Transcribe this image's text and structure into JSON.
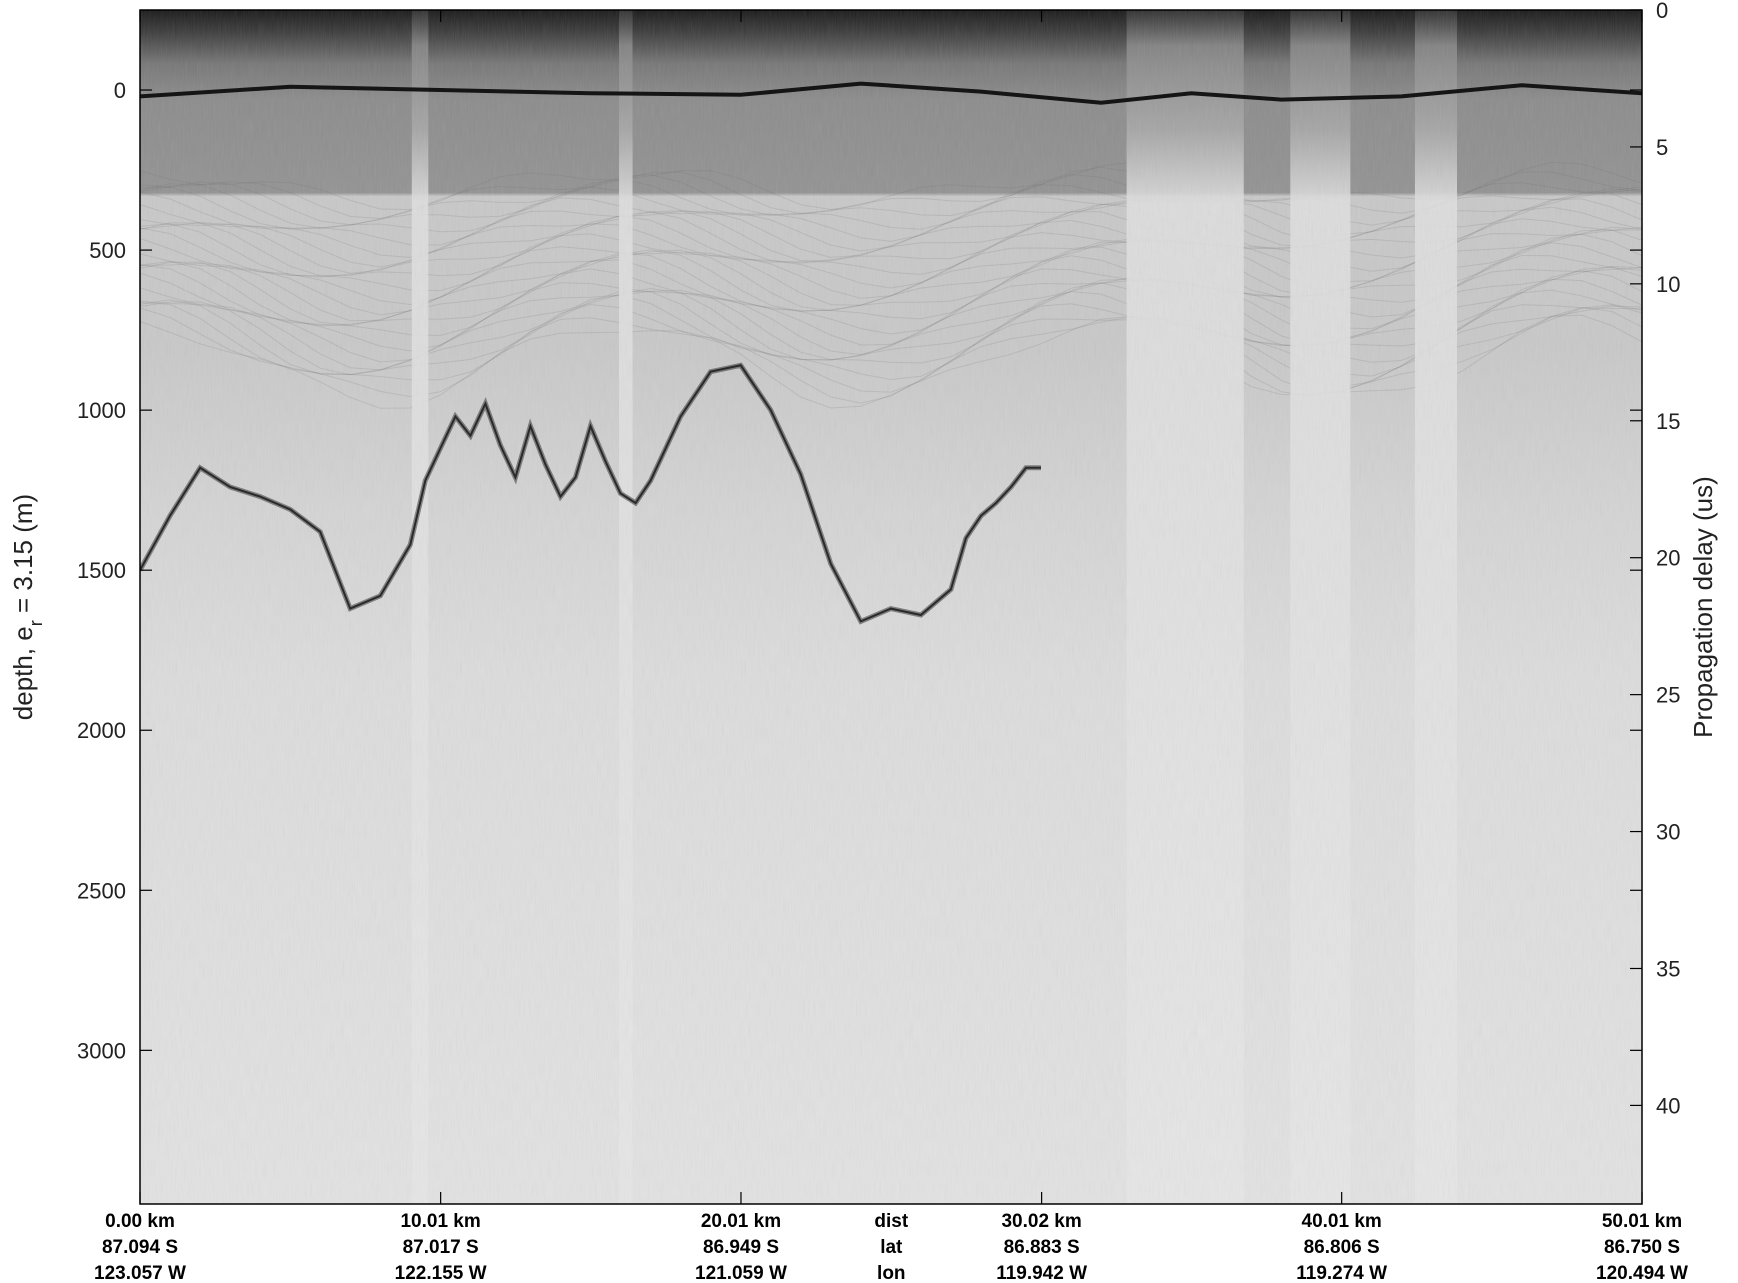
{
  "chart_data": {
    "type": "heatmap",
    "description_kind": "radar echogram (grayscale)",
    "colormap": "gray",
    "left_axis": {
      "label_main": "depth, e",
      "label_sub": "r",
      "label_tail": " = 3.15 (m)",
      "range": [
        -250,
        3480
      ],
      "reversed": true,
      "ticks": [
        0,
        500,
        1000,
        1500,
        2000,
        2500,
        3000
      ]
    },
    "right_axis": {
      "label": "Propagation delay (us)",
      "range": [
        0,
        43.6
      ],
      "reversed": true,
      "ticks": [
        0,
        5,
        10,
        15,
        20,
        25,
        30,
        35,
        40
      ]
    },
    "x_axis": {
      "range": [
        0,
        50.01
      ],
      "unit": "km",
      "tick_positions": [
        0,
        10.01,
        20.01,
        30.02,
        40.01,
        50.01
      ],
      "row_labels": [
        "dist",
        "lat",
        "lon"
      ],
      "dist": [
        "0.00 km",
        "10.01 km",
        "20.01 km",
        "30.02 km",
        "40.01 km",
        "50.01 km"
      ],
      "lat": [
        "87.094 S",
        "87.017 S",
        "86.949 S",
        "86.883 S",
        "86.806 S",
        "86.750 S"
      ],
      "lon": [
        "123.057 W",
        "122.155 W",
        "121.059 W",
        "119.942 W",
        "119.274 W",
        "120.494 W"
      ]
    },
    "surface_reflector": {
      "x_km": [
        0,
        5,
        10,
        15,
        20,
        24,
        28,
        32,
        35,
        38,
        42,
        46,
        50.01
      ],
      "depth_m": [
        20,
        -10,
        0,
        10,
        15,
        -20,
        5,
        40,
        10,
        30,
        20,
        -15,
        10
      ]
    },
    "bed_reflector": {
      "x_km": [
        0,
        1,
        2,
        3,
        4,
        5,
        6,
        7,
        8,
        9,
        9.5,
        10,
        10.5,
        11,
        11.5,
        12,
        12.5,
        13,
        13.5,
        14,
        14.5,
        15,
        15.5,
        16,
        16.5,
        17,
        18,
        19,
        20,
        21,
        22,
        23,
        24,
        25,
        26,
        27,
        27.5,
        28,
        28.5,
        29,
        29.5,
        30
      ],
      "depth_m": [
        1500,
        1330,
        1180,
        1240,
        1270,
        1310,
        1380,
        1620,
        1580,
        1420,
        1220,
        1120,
        1020,
        1080,
        980,
        1110,
        1210,
        1050,
        1170,
        1270,
        1210,
        1050,
        1160,
        1260,
        1290,
        1220,
        1020,
        880,
        860,
        1000,
        1200,
        1480,
        1660,
        1620,
        1640,
        1560,
        1400,
        1330,
        1290,
        1240,
        1180,
        1180
      ]
    },
    "bright_bands_km": [
      [
        9.05,
        9.6
      ],
      [
        15.95,
        16.4
      ],
      [
        32.85,
        36.75
      ],
      [
        38.3,
        40.3
      ],
      [
        42.45,
        43.85
      ]
    ]
  }
}
